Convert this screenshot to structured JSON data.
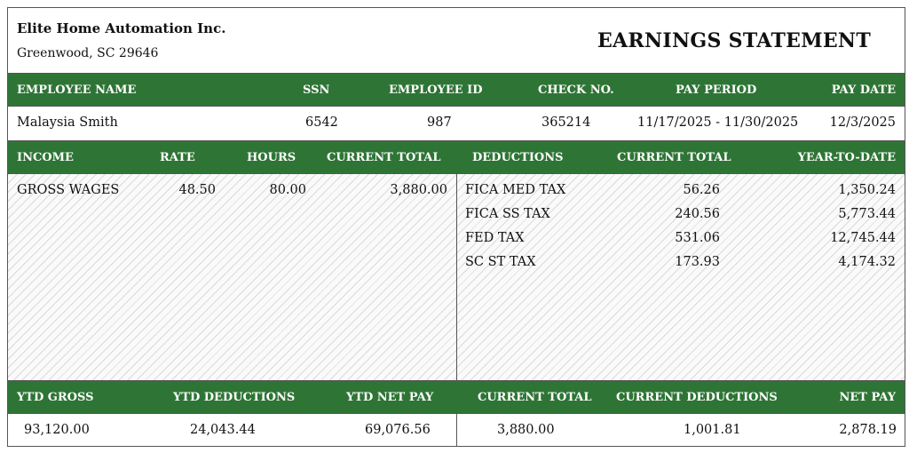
{
  "company": {
    "name": "Elite Home Automation Inc.",
    "address": "Greenwood, SC 29646"
  },
  "title": "EARNINGS STATEMENT",
  "employee_header": {
    "employee_name": "EMPLOYEE NAME",
    "ssn": "SSN",
    "employee_id": "EMPLOYEE ID",
    "check_no": "CHECK NO.",
    "pay_period": "PAY PERIOD",
    "pay_date": "PAY DATE"
  },
  "employee": {
    "name": "Malaysia Smith",
    "ssn": "6542",
    "employee_id": "987",
    "check_no": "365214",
    "pay_period": "11/17/2025 - 11/30/2025",
    "pay_date": "12/3/2025"
  },
  "detail_header": {
    "income": "INCOME",
    "rate": "RATE",
    "hours": "HOURS",
    "income_current_total": "CURRENT TOTAL",
    "deductions": "DEDUCTIONS",
    "deductions_current_total": "CURRENT TOTAL",
    "year_to_date": "YEAR-TO-DATE"
  },
  "income": [
    {
      "label": "GROSS WAGES",
      "rate": "48.50",
      "hours": "80.00",
      "current_total": "3,880.00"
    }
  ],
  "deductions": [
    {
      "label": "FICA MED TAX",
      "current_total": "56.26",
      "ytd": "1,350.24"
    },
    {
      "label": "FICA SS TAX",
      "current_total": "240.56",
      "ytd": "5,773.44"
    },
    {
      "label": "FED TAX",
      "current_total": "531.06",
      "ytd": "12,745.44"
    },
    {
      "label": "SC ST TAX",
      "current_total": "173.93",
      "ytd": "4,174.32"
    }
  ],
  "summary_header": {
    "ytd_gross": "YTD GROSS",
    "ytd_deductions": "YTD DEDUCTIONS",
    "ytd_net_pay": "YTD NET PAY",
    "current_total": "CURRENT TOTAL",
    "current_deductions": "CURRENT DEDUCTIONS",
    "net_pay": "NET PAY"
  },
  "summary": {
    "ytd_gross": "93,120.00",
    "ytd_deductions": "24,043.44",
    "ytd_net_pay": "69,076.56",
    "current_total": "3,880.00",
    "current_deductions": "1,001.81",
    "net_pay": "2,878.19"
  },
  "colors": {
    "band_green": "#2e7535",
    "border": "#555555"
  }
}
